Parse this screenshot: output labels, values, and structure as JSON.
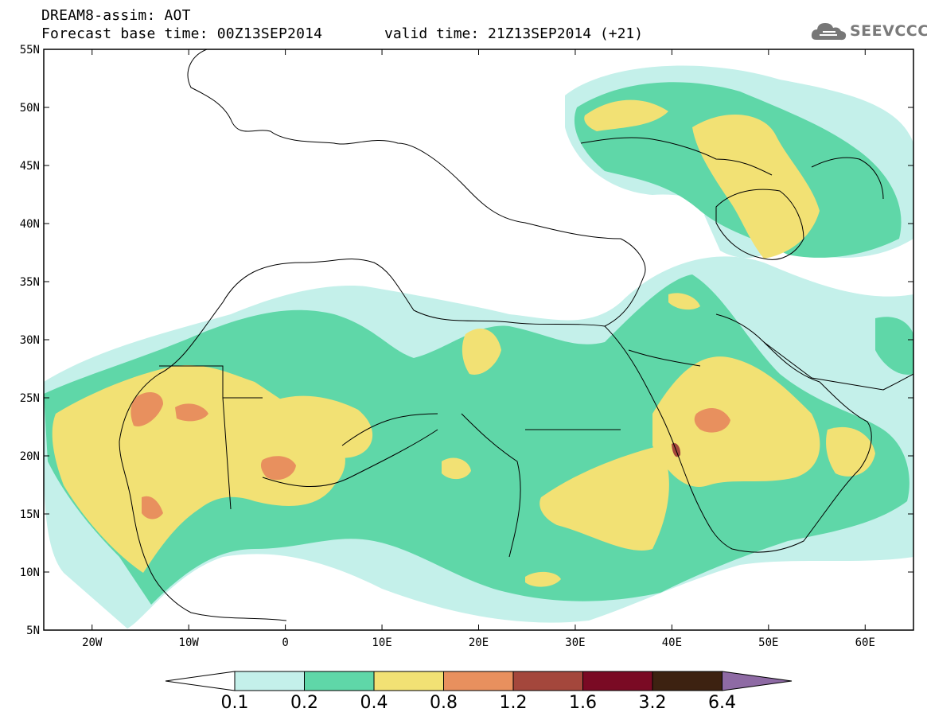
{
  "header": {
    "line1": "DREAM8-assim: AOT",
    "line2": "Forecast base time: 00Z13SEP2014",
    "valid": "valid time: 21Z13SEP2014 (+21)"
  },
  "logo": {
    "text": "SEEVCCC",
    "icon": "cloud-icon"
  },
  "axes": {
    "lat_labels": [
      "55N",
      "50N",
      "45N",
      "40N",
      "35N",
      "30N",
      "25N",
      "20N",
      "15N",
      "10N",
      "5N"
    ],
    "lon_labels": [
      "20W",
      "10W",
      "0",
      "10E",
      "20E",
      "30E",
      "40E",
      "50E",
      "60E"
    ],
    "lon_range": [
      -25,
      65
    ],
    "lat_range": [
      5,
      55
    ]
  },
  "colorbar": {
    "levels": [
      "0.1",
      "0.2",
      "0.4",
      "0.8",
      "1.2",
      "1.6",
      "3.2",
      "6.4"
    ],
    "colors": [
      "#c4f0ea",
      "#5fd7a8",
      "#f2e174",
      "#e8905e",
      "#a4473c",
      "#7a0a24",
      "#3d2211",
      "#8e6aa4"
    ]
  }
}
